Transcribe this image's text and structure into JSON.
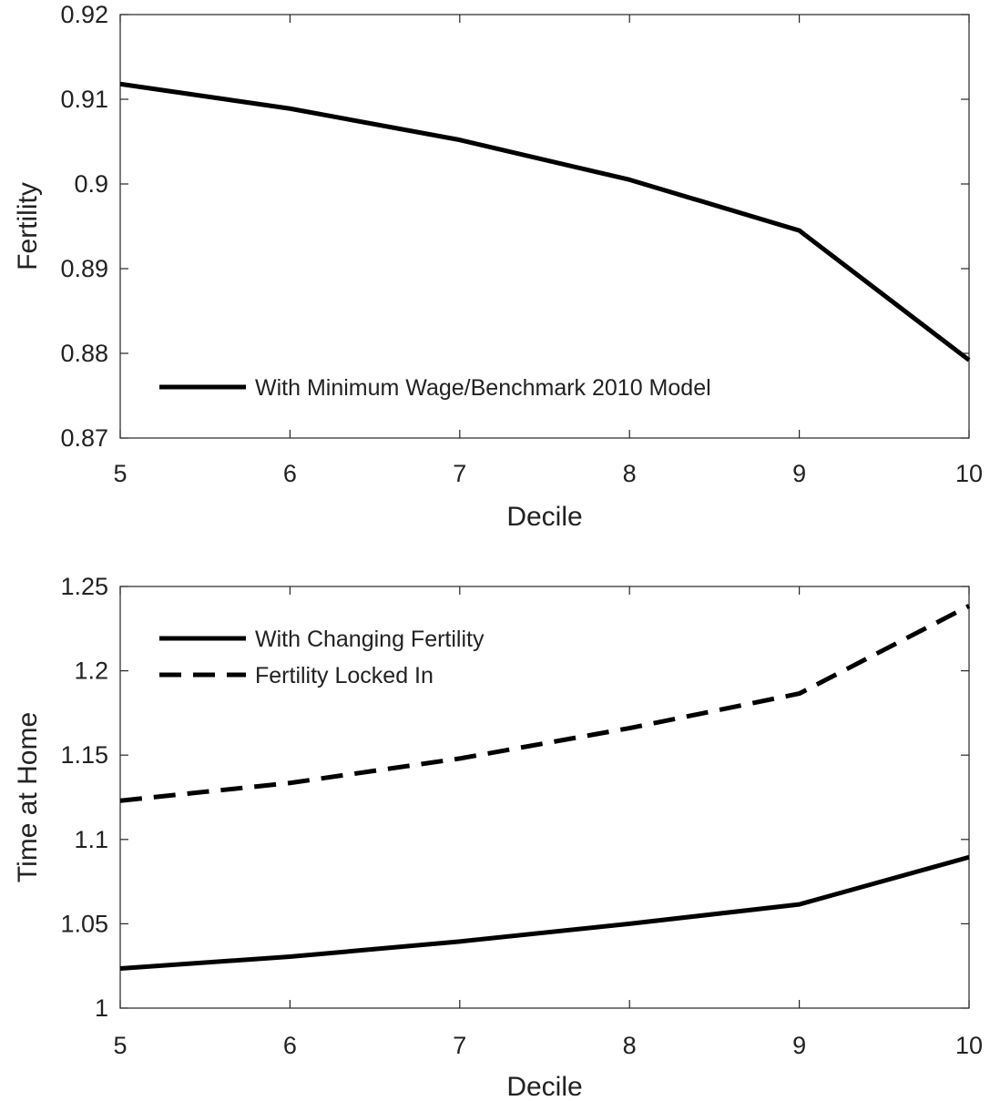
{
  "chart_data": [
    {
      "type": "line",
      "xlabel": "Decile",
      "ylabel": "Fertility",
      "xlim": [
        5,
        10
      ],
      "ylim": [
        0.87,
        0.92
      ],
      "xticks": [
        5,
        6,
        7,
        8,
        9,
        10
      ],
      "yticks": [
        0.87,
        0.88,
        0.89,
        0.9,
        0.91,
        0.92
      ],
      "xtick_labels": [
        "5",
        "6",
        "7",
        "8",
        "9",
        "10"
      ],
      "ytick_labels": [
        "0.87",
        "0.88",
        "0.89",
        "0.9",
        "0.91",
        "0.92"
      ],
      "legend_position": "bottom-left",
      "grid": false,
      "x": [
        5,
        6,
        7,
        8,
        9,
        10
      ],
      "series": [
        {
          "name": "With Minimum Wage/Benchmark 2010 Model",
          "style": "solid",
          "color": "#000000",
          "values": [
            0.9118,
            0.9089,
            0.9052,
            0.9005,
            0.8945,
            0.8792
          ]
        }
      ]
    },
    {
      "type": "line",
      "xlabel": "Decile",
      "ylabel": "Time at Home",
      "xlim": [
        5,
        10
      ],
      "ylim": [
        1,
        1.25
      ],
      "xticks": [
        5,
        6,
        7,
        8,
        9,
        10
      ],
      "yticks": [
        1,
        1.05,
        1.1,
        1.15,
        1.2,
        1.25
      ],
      "xtick_labels": [
        "5",
        "6",
        "7",
        "8",
        "9",
        "10"
      ],
      "ytick_labels": [
        "1",
        "1.05",
        "1.1",
        "1.15",
        "1.2",
        "1.25"
      ],
      "legend_position": "top-left",
      "grid": false,
      "x": [
        5,
        6,
        7,
        8,
        9,
        10
      ],
      "series": [
        {
          "name": "With Changing Fertility",
          "style": "solid",
          "color": "#000000",
          "values": [
            1.0235,
            1.0305,
            1.0395,
            1.05,
            1.0615,
            1.0895
          ]
        },
        {
          "name": "Fertility Locked In",
          "style": "dashed",
          "color": "#000000",
          "values": [
            1.123,
            1.1335,
            1.148,
            1.166,
            1.1865,
            1.2385
          ]
        }
      ]
    }
  ]
}
